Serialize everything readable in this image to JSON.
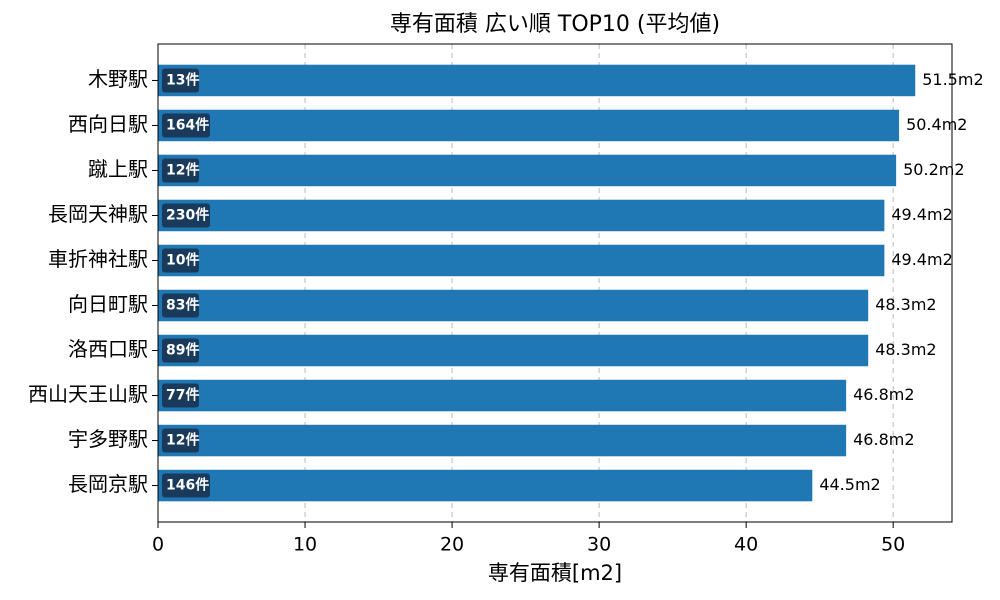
{
  "chart_data": {
    "type": "barh",
    "title": "専有面積 広い順 TOP10 (平均値)",
    "xlabel": "専有面積[m2]",
    "categories": [
      "木野駅",
      "西向日駅",
      "蹴上駅",
      "長岡天神駅",
      "車折神社駅",
      "向日町駅",
      "洛西口駅",
      "西山天王山駅",
      "宇多野駅",
      "長岡京駅"
    ],
    "values": [
      51.5,
      50.4,
      50.2,
      49.4,
      49.4,
      48.3,
      48.3,
      46.8,
      46.8,
      44.5
    ],
    "value_labels": [
      "51.5m2",
      "50.4m2",
      "50.2m2",
      "49.4m2",
      "49.4m2",
      "48.3m2",
      "48.3m2",
      "46.8m2",
      "46.8m2",
      "44.5m2"
    ],
    "count_labels": [
      "13件",
      "164件",
      "12件",
      "230件",
      "10件",
      "83件",
      "89件",
      "77件",
      "12件",
      "146件"
    ],
    "color": "#1f77b4",
    "xlim": [
      0,
      54
    ],
    "xticks": [
      0,
      10,
      20,
      30,
      40,
      50
    ],
    "grid": true
  }
}
